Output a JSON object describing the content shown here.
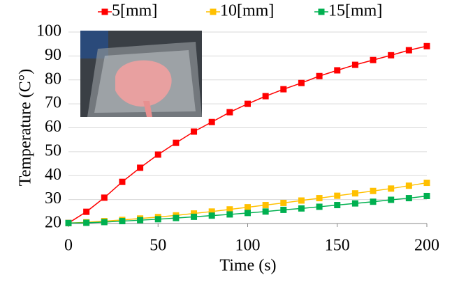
{
  "chart_data": {
    "type": "line",
    "y_label": "Temperature (C°)",
    "x_label": "Time (s)",
    "x": [
      0,
      10,
      20,
      30,
      40,
      50,
      60,
      70,
      80,
      90,
      100,
      110,
      120,
      130,
      140,
      150,
      160,
      170,
      180,
      190,
      200
    ],
    "series": [
      {
        "name": "5[mm]",
        "color": "#ff0000",
        "values": [
          20.2,
          24.9,
          30.8,
          37.4,
          43.3,
          48.8,
          53.7,
          58.4,
          62.4,
          66.5,
          70,
          73.2,
          76.1,
          78.7,
          81.6,
          84,
          86.3,
          88.3,
          90.3,
          92.4,
          94.1
        ]
      },
      {
        "name": "10[mm]",
        "color": "#ffc000",
        "values": [
          20.2,
          20.5,
          21,
          21.5,
          22.1,
          22.7,
          23.4,
          24.2,
          25,
          25.9,
          26.8,
          27.7,
          28.6,
          29.6,
          30.6,
          31.6,
          32.6,
          33.6,
          34.6,
          35.8,
          37
        ]
      },
      {
        "name": "15[mm]",
        "color": "#00b050",
        "values": [
          20.2,
          20.3,
          20.6,
          21,
          21.4,
          21.8,
          22.3,
          22.8,
          23.3,
          23.8,
          24.4,
          25,
          25.7,
          26.3,
          27,
          27.7,
          28.4,
          29.1,
          29.9,
          30.6,
          31.5
        ]
      }
    ],
    "xlim": [
      0,
      200
    ],
    "xticks": [
      0,
      50,
      100,
      150,
      200
    ],
    "ylim": [
      20,
      100
    ],
    "yticks": [
      20,
      30,
      40,
      50,
      60,
      70,
      80,
      90,
      100
    ],
    "grid": true,
    "legend": "top"
  }
}
